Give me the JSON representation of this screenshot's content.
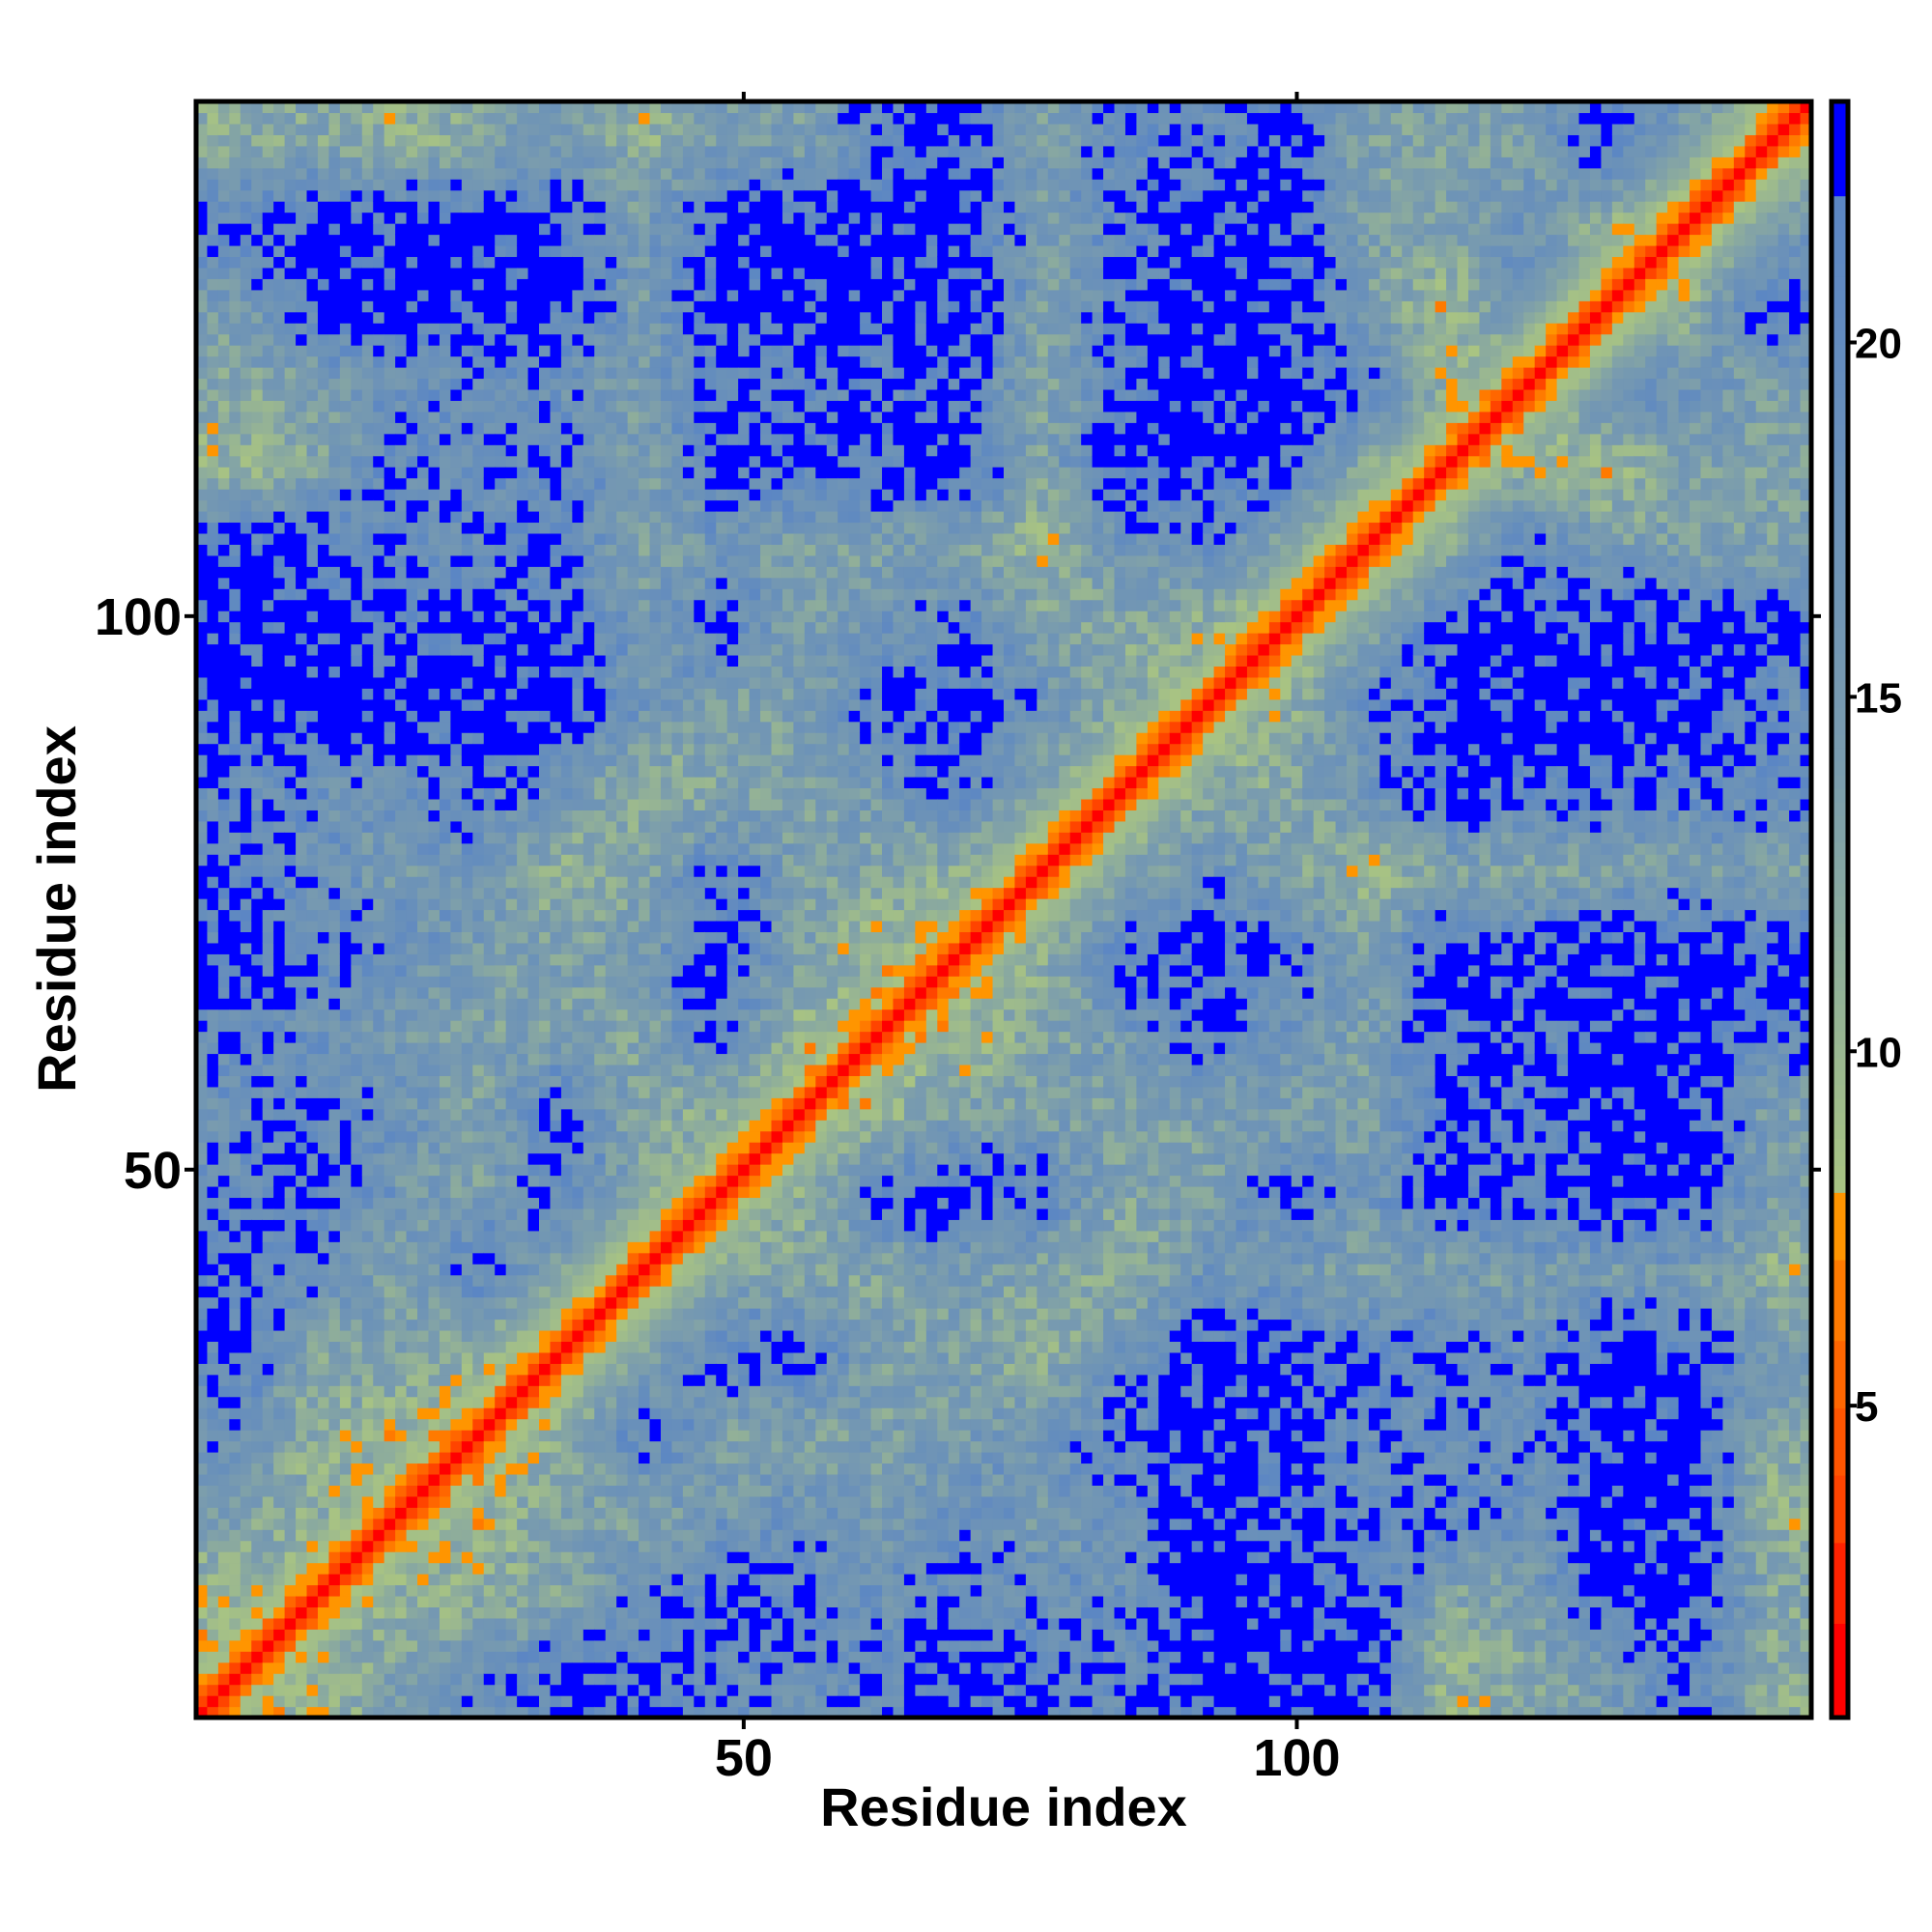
{
  "chart_data": {
    "type": "heatmap",
    "title": "",
    "xlabel": "Residue index",
    "ylabel": "Residue index",
    "n_residues": 146,
    "xlim": [
      0.5,
      146.5
    ],
    "ylim": [
      0.5,
      146.5
    ],
    "x_ticks": [
      50,
      100
    ],
    "y_ticks": [
      50,
      100
    ],
    "x_tick_labels": [
      "50",
      "100"
    ],
    "y_tick_labels": [
      "50",
      "100"
    ],
    "colorbar": {
      "range": [
        0.6,
        23.4
      ],
      "ticks": [
        5,
        10,
        15,
        20
      ],
      "tick_labels": [
        "5",
        "10",
        "15",
        "20"
      ],
      "saturation_value": 22,
      "colors": {
        "low": "#ff0000",
        "mid_orange": "#ff9500",
        "yellow_green": "#a9c482",
        "steel": "#7a9cae",
        "high_steel": "#5b86c4",
        "saturated": "#0000ff"
      }
    },
    "value_description": "pairwise residue distance (approx.)",
    "block_grid_size": 20,
    "block_matrix_lower": [
      [],
      [
        10
      ],
      [
        14,
        11
      ],
      [
        18,
        11,
        10
      ],
      [
        20,
        13,
        14,
        10
      ],
      [
        21,
        18,
        14,
        20,
        14
      ],
      [
        18,
        20,
        16,
        14,
        20,
        13
      ],
      [
        17,
        20,
        17,
        14,
        20,
        13,
        12
      ],
      [
        19,
        17,
        15,
        14,
        14,
        13,
        20,
        10
      ],
      [
        21,
        19,
        18,
        15,
        14,
        15,
        21,
        14,
        9
      ],
      [
        20,
        17,
        15,
        17,
        11,
        13,
        20,
        14,
        13,
        12
      ],
      [
        18,
        17,
        17,
        19,
        17,
        11,
        13,
        14,
        16,
        20,
        13
      ],
      [
        22,
        22,
        22,
        22,
        22,
        17,
        14,
        14,
        20,
        22,
        17,
        12
      ],
      [
        22,
        22,
        21,
        21,
        21,
        15,
        20,
        14,
        17,
        19,
        14,
        13,
        11
      ],
      [
        22,
        21,
        19,
        18,
        20,
        14,
        16,
        14,
        14,
        14,
        10,
        17,
        18,
        14
      ],
      [
        10,
        13,
        19,
        18,
        20,
        14,
        21,
        21,
        21,
        22,
        14,
        22,
        22,
        20,
        13
      ],
      [
        13,
        14,
        17,
        18,
        17,
        15,
        20,
        20,
        18,
        20,
        13,
        20,
        22,
        22,
        20,
        10
      ],
      [
        15,
        22,
        22,
        22,
        22,
        15,
        22,
        22,
        22,
        22,
        14,
        20,
        22,
        22,
        15,
        9,
        20
      ],
      [
        20,
        22,
        22,
        22,
        22,
        15,
        22,
        22,
        22,
        22,
        15,
        18,
        22,
        22,
        14,
        14,
        17,
        11
      ],
      [
        12,
        13,
        11,
        13,
        16,
        11,
        15,
        14,
        20,
        22,
        14,
        20,
        18,
        22,
        14,
        14,
        14,
        22,
        15
      ]
    ],
    "near_diagonal_distance": [
      0.8,
      3.8,
      5.6,
      7.0
    ],
    "grid": false,
    "legend": "colorbar-right"
  }
}
